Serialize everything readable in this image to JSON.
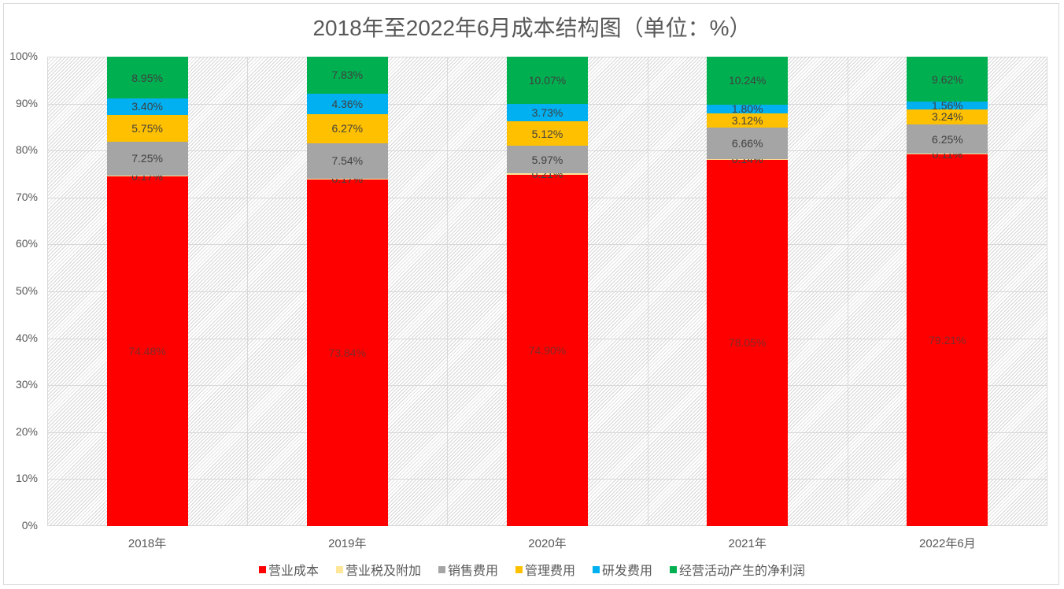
{
  "chart_data": {
    "type": "bar",
    "stacked": true,
    "percent_stacked": true,
    "title": "2018年至2022年6月成本结构图（单位：%）",
    "xlabel": "",
    "ylabel": "",
    "ylim": [
      0,
      100
    ],
    "y_ticks": [
      "0%",
      "10%",
      "20%",
      "30%",
      "40%",
      "50%",
      "60%",
      "70%",
      "80%",
      "90%",
      "100%"
    ],
    "grid": true,
    "legend_position": "bottom",
    "categories": [
      "2018年",
      "2019年",
      "2020年",
      "2021年",
      "2022年6月"
    ],
    "series": [
      {
        "name": "营业成本",
        "color": "#ff0000",
        "values": [
          74.48,
          73.84,
          74.9,
          78.05,
          79.21
        ],
        "labels": [
          "74.48%",
          "73.84%",
          "74.90%",
          "78.05%",
          "79.21%"
        ]
      },
      {
        "name": "营业税及附加",
        "color": "#ffe699",
        "values": [
          0.17,
          0.17,
          0.21,
          0.14,
          0.11
        ],
        "labels": [
          "0.17%",
          "0.17%",
          "0.21%",
          "0.14%",
          "0.11%"
        ]
      },
      {
        "name": "销售费用",
        "color": "#a5a5a5",
        "values": [
          7.25,
          7.54,
          5.97,
          6.66,
          6.25
        ],
        "labels": [
          "7.25%",
          "7.54%",
          "5.97%",
          "6.66%",
          "6.25%"
        ]
      },
      {
        "name": "管理费用",
        "color": "#ffc000",
        "values": [
          5.75,
          6.27,
          5.12,
          3.12,
          3.24
        ],
        "labels": [
          "5.75%",
          "6.27%",
          "5.12%",
          "3.12%",
          "3.24%"
        ]
      },
      {
        "name": "研发费用",
        "color": "#00b0f0",
        "values": [
          3.4,
          4.36,
          3.73,
          1.8,
          1.56
        ],
        "labels": [
          "3.40%",
          "4.36%",
          "3.73%",
          "1.80%",
          "1.56%"
        ]
      },
      {
        "name": "经营活动产生的净利润",
        "color": "#00b050",
        "values": [
          8.95,
          7.83,
          10.07,
          10.24,
          9.62
        ],
        "labels": [
          "8.95%",
          "7.83%",
          "10.07%",
          "10.24%",
          "9.62%"
        ]
      }
    ]
  }
}
